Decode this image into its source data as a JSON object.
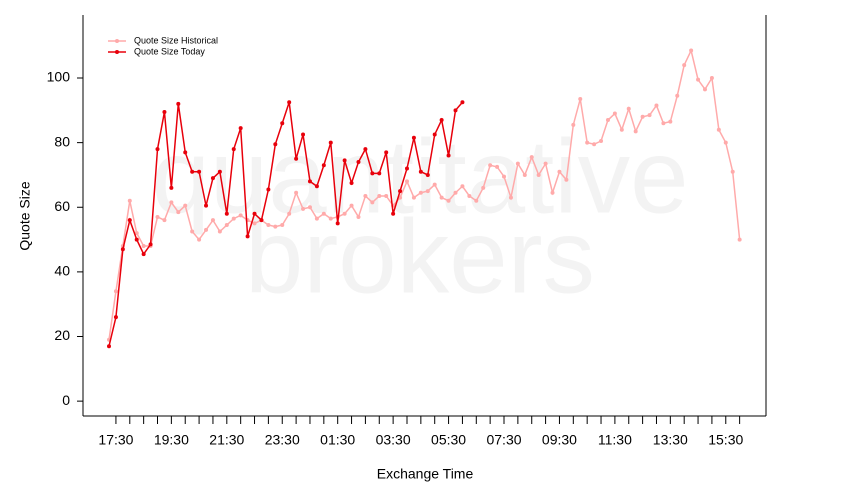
{
  "chart_data": {
    "type": "line",
    "watermark": [
      "quantitative",
      "brokers"
    ],
    "x_label": "Exchange Time",
    "y_label": "Quote Size",
    "categories": [
      null,
      "17:30",
      null,
      null,
      null,
      null,
      null,
      null,
      null,
      "19:30",
      null,
      null,
      null,
      null,
      null,
      null,
      null,
      "21:30",
      null,
      null,
      null,
      null,
      null,
      null,
      null,
      "23:30",
      null,
      null,
      null,
      null,
      null,
      null,
      null,
      "01:30",
      null,
      null,
      null,
      null,
      null,
      null,
      null,
      "03:30",
      null,
      null,
      null,
      null,
      null,
      null,
      null,
      "05:30",
      null,
      null,
      null,
      null,
      null,
      null,
      null,
      "07:30",
      null,
      null,
      null,
      null,
      null,
      null,
      null,
      "09:30",
      null,
      null,
      null,
      null,
      null,
      null,
      null,
      "11:30",
      null,
      null,
      null,
      null,
      null,
      null,
      null,
      "13:30",
      null,
      null,
      null,
      null,
      null,
      null,
      null,
      "15:30",
      null,
      null
    ],
    "series": [
      {
        "name": "Quote Size Historical",
        "color": "#ffaaaa",
        "values": [
          19,
          34,
          48,
          62,
          52,
          48,
          48,
          57,
          56,
          61.5,
          58.5,
          60.5,
          52.5,
          50,
          53,
          56,
          52.5,
          54.5,
          56.5,
          57.5,
          56,
          55,
          56,
          54.5,
          54,
          54.5,
          58,
          64.5,
          59.5,
          60,
          56.5,
          58,
          56.5,
          57,
          58,
          60.5,
          57,
          63.5,
          61.5,
          63.5,
          63.5,
          60.5,
          63,
          68,
          63,
          64.5,
          65,
          67,
          63,
          62,
          64.5,
          66.5,
          63.5,
          62,
          66,
          73,
          72.5,
          69.5,
          63,
          73.5,
          70,
          75.5,
          70,
          73.5,
          64.5,
          71,
          68.5,
          85.5,
          93.5,
          80,
          79.5,
          80.5,
          87,
          89,
          84,
          90.5,
          83.5,
          88,
          88.5,
          91.5,
          86,
          86.5,
          94.5,
          104,
          108.5,
          99.5,
          96.5,
          100,
          84,
          80,
          71,
          50
        ]
      },
      {
        "name": "Quote Size Today",
        "color": "#e8000b",
        "values": [
          17,
          26,
          47,
          56,
          50,
          45.5,
          48.5,
          78,
          89.5,
          66,
          92,
          77,
          71,
          71,
          60.5,
          69,
          71,
          58,
          78,
          84.5,
          51,
          58,
          56,
          65.5,
          79.5,
          86,
          92.5,
          75,
          82.5,
          68,
          66.5,
          73,
          80,
          55,
          74.5,
          67.5,
          74,
          78,
          70.5,
          70.5,
          77,
          58,
          65,
          72,
          81.5,
          71,
          70,
          82.5,
          87,
          76,
          90,
          92.5,
          null,
          null,
          null,
          null,
          null,
          null,
          null,
          null,
          null,
          null,
          null,
          null,
          null,
          null,
          null,
          null,
          null,
          null,
          null,
          null,
          null,
          null,
          null,
          null,
          null,
          null,
          null,
          null,
          null,
          null,
          null,
          null,
          null,
          null,
          null,
          null,
          null,
          null,
          null,
          null
        ]
      }
    ],
    "ylim": [
      -4.6,
      119.5
    ],
    "yticks": [
      0,
      20,
      40,
      60,
      80,
      100
    ],
    "legend": "top-left"
  }
}
